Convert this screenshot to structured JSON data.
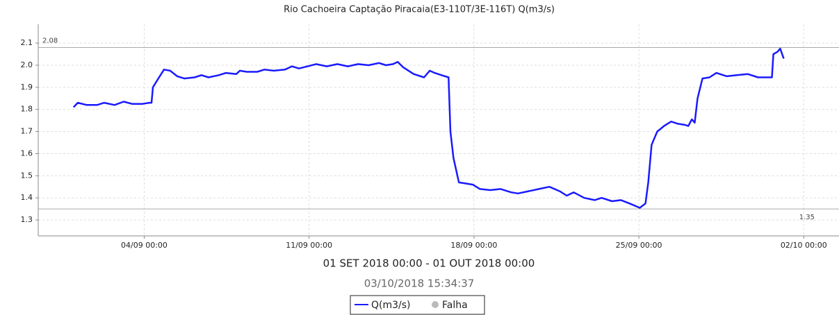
{
  "chart_data": {
    "type": "line",
    "title": "Rio Cachoeira Captação Piracaia(E3-110T/3E-116T) Q(m3/s)",
    "subtitle": "01 SET 2018 00:00 - 01 OUT 2018 00:00",
    "timestamp": "03/10/2018 15:34:37",
    "x": [
      0,
      0.18,
      0.56,
      1.0,
      1.3,
      1.74,
      2.13,
      2.48,
      2.92,
      3.22,
      3.31,
      3.37,
      3.6,
      3.84,
      4.1,
      4.4,
      4.7,
      5.14,
      5.43,
      5.73,
      6.17,
      6.47,
      6.91,
      7.06,
      7.35,
      7.8,
      8.1,
      8.5,
      8.98,
      9.27,
      9.57,
      10.3,
      10.75,
      11.2,
      11.64,
      12.08,
      12.52,
      12.97,
      13.26,
      13.56,
      13.76,
      14.0,
      14.44,
      14.88,
      15.12,
      15.33,
      15.62,
      15.92,
      16.0,
      16.13,
      16.36,
      16.66,
      16.95,
      17.25,
      17.69,
      18.13,
      18.58,
      18.87,
      19.31,
      19.76,
      20.2,
      20.64,
      20.94,
      21.23,
      21.68,
      22.12,
      22.42,
      22.86,
      23.24,
      23.6,
      24.04,
      24.28,
      24.4,
      24.54,
      24.78,
      25.07,
      25.37,
      25.66,
      25.96,
      26.1,
      26.25,
      26.37,
      26.49,
      26.7,
      27.0,
      27.29,
      27.73,
      28.17,
      28.62,
      29.06,
      29.36,
      29.65,
      29.71,
      29.88,
      30.0,
      30.15
    ],
    "series": [
      {
        "name": "Q(m3/s)",
        "color": "#1a1aff",
        "values": [
          1.81,
          1.83,
          1.82,
          1.82,
          1.83,
          1.82,
          1.835,
          1.825,
          1.825,
          1.83,
          1.83,
          1.9,
          1.94,
          1.98,
          1.975,
          1.95,
          1.94,
          1.945,
          1.955,
          1.945,
          1.955,
          1.965,
          1.96,
          1.975,
          1.97,
          1.97,
          1.98,
          1.975,
          1.98,
          1.995,
          1.985,
          2.005,
          1.995,
          2.005,
          1.995,
          2.005,
          2.0,
          2.01,
          2.0,
          2.005,
          2.015,
          1.99,
          1.96,
          1.945,
          1.975,
          1.965,
          1.955,
          1.945,
          1.7,
          1.58,
          1.47,
          1.465,
          1.46,
          1.44,
          1.435,
          1.44,
          1.425,
          1.42,
          1.43,
          1.44,
          1.45,
          1.43,
          1.41,
          1.425,
          1.4,
          1.39,
          1.4,
          1.385,
          1.39,
          1.375,
          1.355,
          1.375,
          1.47,
          1.64,
          1.7,
          1.725,
          1.745,
          1.735,
          1.73,
          1.725,
          1.755,
          1.74,
          1.85,
          1.94,
          1.945,
          1.965,
          1.95,
          1.955,
          1.96,
          1.945,
          1.945,
          1.945,
          2.05,
          2.06,
          2.075,
          2.03
        ]
      },
      {
        "name": "Falha",
        "color": "#bbbbbb"
      }
    ],
    "xlim": [
      -1.5,
      31.7
    ],
    "xticks": [
      {
        "value": 3,
        "label": "04/09 00:00"
      },
      {
        "value": 10,
        "label": "11/09 00:00"
      },
      {
        "value": 17,
        "label": "18/09 00:00"
      },
      {
        "value": 24,
        "label": "25/09 00:00"
      },
      {
        "value": 31,
        "label": "02/10 00:00"
      }
    ],
    "ylim": [
      1.228,
      2.185
    ],
    "yticks": [
      1.3,
      1.4,
      1.5,
      1.6,
      1.7,
      1.8,
      1.9,
      {
        "value": 2,
        "label": "2.0"
      },
      2.1
    ],
    "reference_lines": [
      {
        "value": 2.08,
        "label": "2.08"
      },
      {
        "value": 1.35,
        "label": "1.35"
      }
    ],
    "grid": true
  }
}
